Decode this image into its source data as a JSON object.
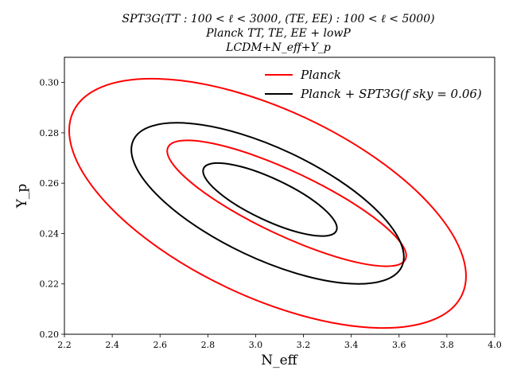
{
  "chart_data": {
    "type": "contour",
    "title_lines": [
      "SPT3G(TT : 100 < ℓ < 3000, (TE, EE) : 100 < ℓ < 5000)",
      "Planck TT, TE, EE + lowP",
      "LCDM+N_eff+Y_p"
    ],
    "xlabel": "N_eff",
    "ylabel": "Y_p",
    "xlim": [
      2.2,
      4.0
    ],
    "ylim": [
      0.2,
      0.31
    ],
    "xticks": [
      2.2,
      2.4,
      2.6,
      2.8,
      3.0,
      3.2,
      3.4,
      3.6,
      3.8,
      4.0
    ],
    "yticks": [
      0.2,
      0.22,
      0.24,
      0.26,
      0.28,
      0.3
    ],
    "xtick_labels": [
      "2.2",
      "2.4",
      "2.6",
      "2.8",
      "3.0",
      "3.2",
      "3.4",
      "3.6",
      "3.8",
      "4.0"
    ],
    "ytick_labels": [
      "0.20",
      "0.22",
      "0.24",
      "0.26",
      "0.28",
      "0.30"
    ],
    "legend_position": "top-right",
    "series": [
      {
        "name": "Planck",
        "color": "#ff0000",
        "contours": [
          {
            "level": "1σ",
            "center": [
              3.13,
              0.252
            ],
            "x_range": [
              2.63,
              3.63
            ],
            "y_range": [
              0.227,
              0.277
            ]
          },
          {
            "level": "2σ",
            "center": [
              3.05,
              0.252
            ],
            "x_range": [
              2.22,
              3.88
            ],
            "y_range": [
              0.2025,
              0.3015
            ]
          }
        ]
      },
      {
        "name": "Planck + SPT3G(f sky = 0.06)",
        "color": "#000000",
        "contours": [
          {
            "level": "1σ",
            "center": [
              3.06,
              0.2535
            ],
            "x_range": [
              2.78,
              3.34
            ],
            "y_range": [
              0.239,
              0.268
            ]
          },
          {
            "level": "2σ",
            "center": [
              3.05,
              0.252
            ],
            "x_range": [
              2.48,
              3.62
            ],
            "y_range": [
              0.22,
              0.284
            ]
          }
        ]
      }
    ]
  }
}
